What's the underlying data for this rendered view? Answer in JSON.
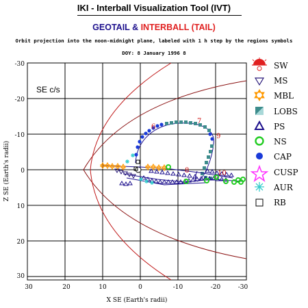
{
  "header": {
    "title": "IKI - Interball Visualization Tool (IVT)",
    "mission_left": "GEOTAIL",
    "mission_amp": "&",
    "mission_right": "INTERBALL (TAIL)",
    "description": "Orbit projection into the noon-midnight plane, labeled with 1 h step by the regions symbols",
    "date_line": "DOY: 8   January 1996 8"
  },
  "plot": {
    "frame_label": "SE c/s",
    "xlabel": "X SE (Earth's radii)",
    "ylabel": "Z SE (Earth's radii)",
    "x_ticks": [
      "30",
      "20",
      "10",
      "0",
      "-10",
      "-20",
      "-30"
    ],
    "z_ticks": [
      "-30",
      "-20",
      "-10",
      "0",
      "10",
      "20",
      "30"
    ],
    "hour_labels": [
      "6",
      "7",
      "8",
      "9",
      "10"
    ]
  },
  "legend": {
    "items": [
      {
        "label": "SW",
        "icon": "sun-icon"
      },
      {
        "label": "MS",
        "icon": "triangle-down-icon"
      },
      {
        "label": "MBL",
        "icon": "star-of-david-icon"
      },
      {
        "label": "LOBS",
        "icon": "half-square-icon"
      },
      {
        "label": "PS",
        "icon": "triangle-up-icon"
      },
      {
        "label": "NS",
        "icon": "circle-outline-icon"
      },
      {
        "label": "CAP",
        "icon": "filled-circle-icon"
      },
      {
        "label": "CUSP",
        "icon": "pentagram-icon"
      },
      {
        "label": "AUR",
        "icon": "asterisk-icon"
      },
      {
        "label": "RB",
        "icon": "square-icon"
      }
    ]
  },
  "colors": {
    "geotail": "#1c0f8c",
    "interball": "#e02020",
    "magnetopause": "#c01818",
    "bow_shock": "#8a1010",
    "msheath": "#2a1a7a",
    "mbl": "#ff9900",
    "lobe": "#3d8c8c",
    "ps": "#1c0f8c",
    "ns": "#22cc22",
    "cap": "#1a3ad8",
    "cusp": "#ff33ff",
    "aur": "#33cccc"
  }
}
